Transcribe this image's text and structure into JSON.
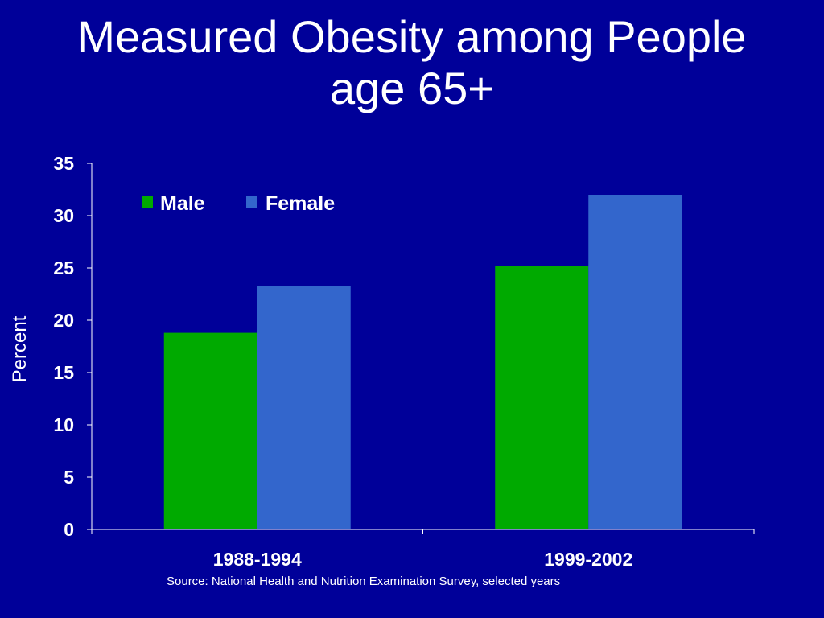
{
  "slide": {
    "title_line1": "Measured Obesity among People",
    "title_line2": "age 65+",
    "source": "Source: National Health and Nutrition Examination Survey, selected years"
  },
  "colors": {
    "background": "#000099",
    "male": "#00aa00",
    "female": "#3366cc",
    "axis": "#ffffff"
  },
  "chart_data": {
    "type": "bar",
    "categories": [
      "1988-1994",
      "1999-2002"
    ],
    "series": [
      {
        "name": "Male",
        "values": [
          18.8,
          25.2
        ]
      },
      {
        "name": "Female",
        "values": [
          23.3,
          32.0
        ]
      }
    ],
    "title": "Measured Obesity among People age 65+",
    "xlabel": "",
    "ylabel": "Percent",
    "ylim": [
      0,
      35
    ],
    "yticks": [
      0,
      5,
      10,
      15,
      20,
      25,
      30,
      35
    ],
    "grid": false,
    "legend": "top-left"
  }
}
